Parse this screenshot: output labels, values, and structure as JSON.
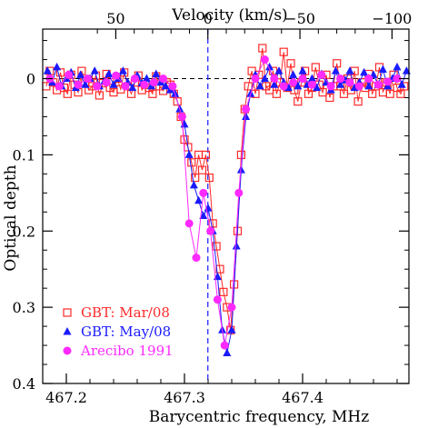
{
  "chart_data": {
    "type": "scatter",
    "xlabel": "Barycentric frequency, MHz",
    "ylabel": "Optical depth",
    "top_axis_label": "Velocity (km/s)",
    "xlim": [
      467.18,
      467.49
    ],
    "ylim": [
      0.4,
      -0.065
    ],
    "x_ticks": [
      467.2,
      467.3,
      467.4
    ],
    "x_tick_labels": [
      "467.2",
      "467.3",
      "467.4"
    ],
    "y_ticks": [
      0,
      0.1,
      0.2,
      0.3,
      0.4
    ],
    "y_tick_labels": [
      "0",
      "0.1",
      "0.2",
      "0.3",
      "0.4"
    ],
    "top_ticks": [
      50,
      0,
      -50,
      -100
    ],
    "top_tick_labels": [
      "50",
      "0",
      "−50",
      "−100"
    ],
    "rest_frequency_mhz": 467.3198,
    "reference_line_y": 0,
    "series": [
      {
        "name": "GBT: Mar/08",
        "marker": "open-square",
        "color": "#ff2a2a",
        "x": [
          467.183,
          467.186,
          467.189,
          467.192,
          467.195,
          467.198,
          467.201,
          467.204,
          467.207,
          467.21,
          467.213,
          467.216,
          467.219,
          467.222,
          467.225,
          467.228,
          467.231,
          467.234,
          467.237,
          467.24,
          467.243,
          467.246,
          467.249,
          467.252,
          467.255,
          467.258,
          467.261,
          467.264,
          467.267,
          467.27,
          467.273,
          467.276,
          467.279,
          467.282,
          467.285,
          467.288,
          467.291,
          467.294,
          467.297,
          467.3,
          467.303,
          467.306,
          467.309,
          467.312,
          467.315,
          467.318,
          467.321,
          467.324,
          467.327,
          467.33,
          467.333,
          467.336,
          467.339,
          467.342,
          467.345,
          467.348,
          467.351,
          467.354,
          467.357,
          467.36,
          467.363,
          467.366,
          467.369,
          467.372,
          467.375,
          467.378,
          467.381,
          467.384,
          467.387,
          467.39,
          467.393,
          467.396,
          467.399,
          467.402,
          467.405,
          467.408,
          467.411,
          467.414,
          467.417,
          467.42,
          467.423,
          467.426,
          467.429,
          467.432,
          467.435,
          467.438,
          467.441,
          467.444,
          467.447,
          467.45,
          467.453,
          467.456,
          467.459,
          467.462,
          467.465,
          467.468,
          467.471,
          467.474,
          467.477,
          467.48,
          467.483,
          467.486
        ],
        "y": [
          0.01,
          -0.01,
          0.005,
          0.015,
          -0.008,
          0.012,
          0.02,
          -0.005,
          0.008,
          0.018,
          -0.01,
          0.004,
          0.015,
          0.01,
          -0.004,
          0.022,
          0.006,
          -0.006,
          0.012,
          0.018,
          0.0,
          0.014,
          -0.008,
          0.01,
          0.02,
          0.005,
          -0.004,
          0.015,
          0.008,
          0.012,
          0.02,
          -0.003,
          0.01,
          0.016,
          0.005,
          0.008,
          0.02,
          0.03,
          0.05,
          0.08,
          0.09,
          0.11,
          0.13,
          0.1,
          0.12,
          0.1,
          0.13,
          0.19,
          0.22,
          0.25,
          0.28,
          0.3,
          0.33,
          0.27,
          0.2,
          0.1,
          0.04,
          0.01,
          -0.01,
          0.02,
          -0.005,
          -0.04,
          0.01,
          0.015,
          -0.01,
          0.02,
          0.005,
          -0.035,
          0.012,
          -0.02,
          0.015,
          0.03,
          0.005,
          -0.01,
          0.02,
          0.012,
          -0.015,
          0.008,
          0.018,
          -0.005,
          0.025,
          0.01,
          -0.02,
          0.01,
          0.02,
          0.0,
          0.015,
          -0.01,
          0.03,
          0.005,
          0.012,
          -0.006,
          0.02,
          0.01,
          -0.015,
          0.018,
          0.005,
          0.02,
          -0.005,
          0.012,
          0.02,
          0.01
        ]
      },
      {
        "name": "GBT: May/08",
        "marker": "filled-triangle",
        "color": "#1a1aff",
        "x": [
          467.184,
          467.188,
          467.192,
          467.196,
          467.2,
          467.204,
          467.208,
          467.212,
          467.216,
          467.22,
          467.224,
          467.228,
          467.232,
          467.236,
          467.24,
          467.244,
          467.248,
          467.252,
          467.256,
          467.26,
          467.264,
          467.268,
          467.272,
          467.276,
          467.28,
          467.284,
          467.288,
          467.292,
          467.296,
          467.3,
          467.304,
          467.308,
          467.312,
          467.316,
          467.32,
          467.324,
          467.328,
          467.332,
          467.336,
          467.34,
          467.344,
          467.348,
          467.352,
          467.356,
          467.36,
          467.364,
          467.368,
          467.372,
          467.376,
          467.38,
          467.384,
          467.388,
          467.392,
          467.396,
          467.4,
          467.404,
          467.408,
          467.412,
          467.416,
          467.42,
          467.424,
          467.428,
          467.432,
          467.436,
          467.44,
          467.444,
          467.448,
          467.452,
          467.456,
          467.46,
          467.464,
          467.468,
          467.472,
          467.476,
          467.48,
          467.484,
          467.488
        ],
        "y": [
          -0.01,
          0.005,
          -0.015,
          0.01,
          0.0,
          -0.008,
          0.012,
          -0.005,
          0.008,
          0.0,
          -0.01,
          0.01,
          0.004,
          -0.006,
          0.008,
          0.0,
          -0.01,
          0.005,
          0.012,
          -0.004,
          0.006,
          0.0,
          0.01,
          -0.006,
          0.005,
          0.01,
          0.015,
          0.02,
          0.04,
          0.06,
          0.1,
          0.14,
          0.16,
          0.18,
          0.17,
          0.2,
          0.26,
          0.33,
          0.36,
          0.33,
          0.22,
          0.12,
          0.05,
          0.02,
          -0.005,
          0.01,
          0.0,
          -0.015,
          0.008,
          -0.01,
          0.005,
          0.012,
          -0.005,
          0.01,
          -0.01,
          0.008,
          0.0,
          0.012,
          -0.006,
          0.005,
          0.015,
          -0.01,
          0.008,
          0.002,
          -0.01,
          0.012,
          0.005,
          -0.008,
          0.01,
          -0.005,
          0.008,
          -0.012,
          0.01,
          0.0,
          -0.015,
          0.008,
          -0.01
        ]
      },
      {
        "name": "Arecibo 1991",
        "marker": "filled-circle",
        "color": "#ff2aff",
        "x": [
          467.186,
          467.194,
          467.202,
          467.21,
          467.218,
          467.226,
          467.234,
          467.242,
          467.25,
          467.258,
          467.266,
          467.274,
          467.282,
          467.29,
          467.298,
          467.304,
          467.31,
          467.316,
          467.322,
          467.328,
          467.334,
          467.34,
          467.346,
          467.352,
          467.36,
          467.368,
          467.376,
          467.384,
          467.392,
          467.4,
          467.408,
          467.416,
          467.424,
          467.432,
          467.44,
          467.448,
          467.456,
          467.464,
          467.472,
          467.48
        ],
        "y": [
          0.0,
          0.01,
          -0.005,
          0.008,
          0.0,
          0.01,
          0.005,
          -0.004,
          0.01,
          0.0,
          0.008,
          0.005,
          0.0,
          0.01,
          0.05,
          0.19,
          0.235,
          0.15,
          0.2,
          0.29,
          0.35,
          0.3,
          0.15,
          0.04,
          0.0,
          -0.025,
          0.0,
          0.01,
          0.005,
          0.0,
          0.008,
          -0.005,
          0.01,
          0.0,
          0.005,
          0.01,
          0.0,
          0.008,
          0.004,
          0.0
        ]
      }
    ],
    "legend_position": "bottom-left"
  }
}
